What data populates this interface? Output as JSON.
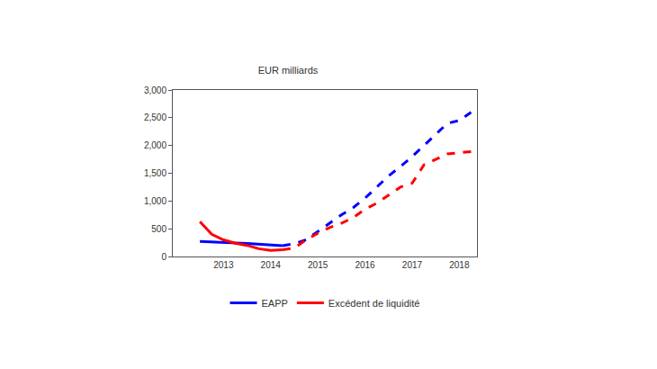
{
  "chart_data": {
    "type": "line",
    "title": "EUR milliards",
    "categories": [
      null,
      null,
      "2013",
      null,
      null,
      null,
      "2014",
      null,
      null,
      null,
      "2015",
      null,
      null,
      null,
      "2016",
      null,
      null,
      null,
      "2017",
      null,
      null,
      null,
      "2018",
      null
    ],
    "series": [
      {
        "name": "EAPP",
        "color": "#0000ff",
        "line_style": "solid",
        "values": [
          270,
          265,
          255,
          245,
          235,
          220,
          200,
          195,
          null,
          null,
          null,
          null,
          null,
          null,
          null,
          null,
          null,
          null,
          null,
          null,
          null,
          null,
          null,
          null
        ]
      },
      {
        "color": "#0000ff",
        "line_style": "dash",
        "values": [
          null,
          null,
          null,
          null,
          null,
          null,
          null,
          195,
          230,
          300,
          450,
          600,
          750,
          880,
          1050,
          1250,
          1450,
          1620,
          1800,
          2000,
          2200,
          2400,
          2450,
          2600
        ]
      },
      {
        "name": "Excédent de liquidité",
        "color": "#ff0000",
        "line_style": "solid",
        "values": [
          630,
          400,
          300,
          240,
          200,
          140,
          110,
          120,
          null,
          null,
          null,
          null,
          null,
          null,
          null,
          null,
          null,
          null,
          null,
          null,
          null,
          null,
          null,
          null
        ]
      },
      {
        "color": "#ff0000",
        "line_style": "dash",
        "values": [
          null,
          null,
          null,
          null,
          null,
          null,
          null,
          120,
          150,
          300,
          420,
          520,
          600,
          700,
          850,
          960,
          1100,
          1250,
          1320,
          1650,
          1750,
          1850,
          1870,
          1890
        ]
      }
    ],
    "ylim": [
      0,
      3000
    ],
    "yticks": [
      0,
      500,
      {
        "value": 1000,
        "label": "1,000"
      },
      {
        "value": 1500,
        "label": "1,500"
      },
      {
        "value": 2000,
        "label": "2,000"
      },
      {
        "value": 2500,
        "label": "2,500"
      },
      {
        "value": 3000,
        "label": "3,000"
      }
    ],
    "grid": false,
    "legend": "bottom"
  }
}
